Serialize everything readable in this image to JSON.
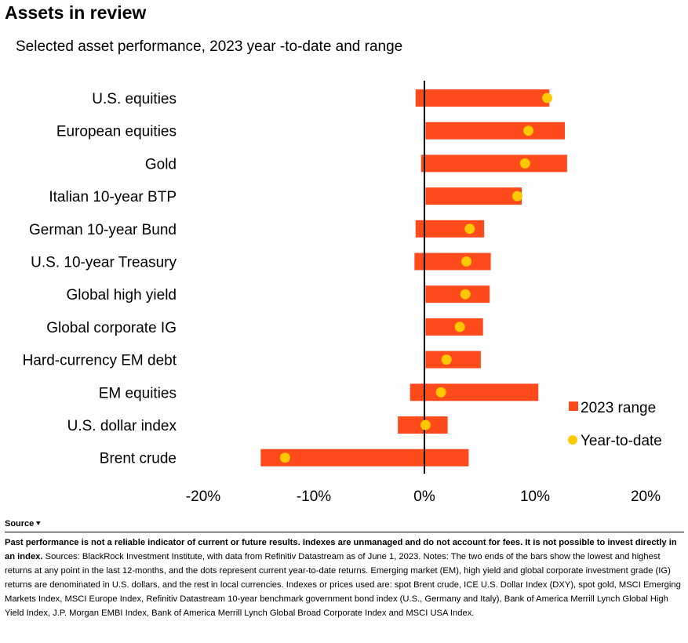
{
  "header": {
    "title": "Assets in review",
    "subtitle": "Selected asset performance, 2023 year   -to-date and range"
  },
  "colors": {
    "range": "#FF4A1C",
    "ytd": "#FFC800",
    "axis": "#000000"
  },
  "chart_data": {
    "type": "bar",
    "orientation": "horizontal",
    "title": "Assets in review",
    "subtitle": "Selected asset performance, 2023 year   -to-date and range",
    "xlabel": "",
    "ylabel": "",
    "xlim": [
      -20,
      20
    ],
    "xticks": [
      -20,
      -10,
      0,
      10,
      20
    ],
    "xtick_labels": [
      "-20%",
      "-10%",
      "0%",
      "10%",
      "20%"
    ],
    "grid": false,
    "legend_position": "right",
    "categories": [
      "U.S. equities",
      "European equities",
      "Gold",
      "Italian 10-year BTP",
      "German 10-year Bund",
      "U.S. 10-year Treasury",
      "Global high yield",
      "Global corporate IG",
      "Hard-currency EM debt",
      "EM equities",
      "U.S. dollar index",
      "Brent crude"
    ],
    "series": [
      {
        "name": "2023 range",
        "kind": "range-bar",
        "low": [
          -0.8,
          0.1,
          -0.3,
          0.1,
          -0.8,
          -0.9,
          0.1,
          0.1,
          0.1,
          -1.3,
          -2.4,
          -14.8
        ],
        "high": [
          11.3,
          12.7,
          12.9,
          8.8,
          5.4,
          6.0,
          5.9,
          5.3,
          5.1,
          10.3,
          2.1,
          4.0
        ]
      },
      {
        "name": "Year-to-date",
        "kind": "dot",
        "values": [
          11.1,
          9.4,
          9.1,
          8.4,
          4.1,
          3.8,
          3.7,
          3.2,
          2.0,
          1.5,
          0.1,
          -12.6
        ]
      }
    ]
  },
  "legend": {
    "range_label": "2023 range",
    "ytd_label": "Year-to-date"
  },
  "footer": {
    "source_label": "Source",
    "disclaimer": "Past performance is not a reliable indicator of current or future results. Indexes are unmanaged and do not account for fees. It is not possible to invest directly in an index.",
    "notes": "Sources: BlackRock Investment Institute, with data from Refinitiv Datastream as of June 1, 2023. Notes: The two ends of the bars show the lowest and highest returns at any point in the last 12-months, and the dots represent current year-to-date returns. Emerging market (EM), high yield and global corporate investment grade (IG) returns are denominated in U.S. dollars, and the rest in local currencies. Indexes or prices used are: spot Brent crude, ICE U.S. Dollar Index (DXY), spot gold, MSCI Emerging Markets Index, MSCI Europe Index, Refinitiv Datastream 10-year benchmark government bond index (U.S., Germany and Italy), Bank of America Merrill Lynch Global High Yield Index, J.P. Morgan EMBI Index, Bank of America Merrill Lynch Global Broad Corporate Index and MSCI USA Index."
  }
}
